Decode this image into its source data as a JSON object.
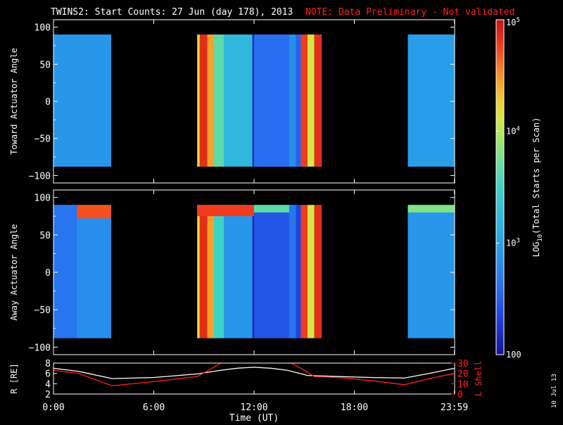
{
  "title": "TWINS2: Start Counts: 27 Jun (day 178), 2013",
  "note": "NOTE: Data Preliminary - Not validated",
  "side_stamp": "10 Jul 13",
  "colors": {
    "background": "#000000",
    "axes": "#ffffff",
    "note": "#ff2020",
    "l_shell": "#ff2020",
    "r_line": "#ffffff"
  },
  "chart_data": [
    {
      "type": "heatmap",
      "name": "toward",
      "ylabel": "Toward Actuator Angle",
      "ylim": [
        -110,
        110
      ],
      "yticks": [
        100,
        50,
        0,
        -50,
        -100
      ],
      "data_ylim": [
        -88,
        90
      ],
      "xlim_hours": [
        0,
        24
      ],
      "data_segments_hours": [
        [
          0,
          3.45
        ],
        [
          8.6,
          16.05
        ],
        [
          21.2,
          23.99
        ]
      ],
      "background_level": 0.22,
      "bands": [
        {
          "x": [
            0.0,
            3.45
          ],
          "level": 0.3
        },
        {
          "x": [
            8.6,
            8.75
          ],
          "level": 0.74
        },
        {
          "x": [
            8.75,
            9.2
          ],
          "level": 0.95
        },
        {
          "x": [
            9.2,
            9.6
          ],
          "level": 0.82
        },
        {
          "x": [
            9.6,
            10.2
          ],
          "level": 0.55
        },
        {
          "x": [
            10.2,
            11.9
          ],
          "level": 0.4
        },
        {
          "x": [
            11.9,
            12.0
          ],
          "level": 0.05
        },
        {
          "x": [
            12.0,
            14.1
          ],
          "level": 0.2
        },
        {
          "x": [
            14.1,
            14.5
          ],
          "level": 0.28
        },
        {
          "x": [
            14.5,
            14.8
          ],
          "level": 0.18
        },
        {
          "x": [
            14.8,
            15.2
          ],
          "level": 0.92
        },
        {
          "x": [
            15.2,
            15.6
          ],
          "level": 0.7
        },
        {
          "x": [
            15.6,
            16.05
          ],
          "level": 0.95
        },
        {
          "x": [
            21.2,
            23.99
          ],
          "level": 0.32
        }
      ]
    },
    {
      "type": "heatmap",
      "name": "away",
      "ylabel": "Away Actuator Angle",
      "ylim": [
        -110,
        110
      ],
      "yticks": [
        100,
        50,
        0,
        -50,
        -100
      ],
      "data_ylim": [
        -88,
        90
      ],
      "xlim_hours": [
        0,
        24
      ],
      "data_segments_hours": [
        [
          0,
          3.45
        ],
        [
          8.6,
          16.05
        ],
        [
          21.2,
          23.99
        ]
      ],
      "background_level": 0.22,
      "bands": [
        {
          "x": [
            0.0,
            1.4
          ],
          "level": 0.22
        },
        {
          "x": [
            1.4,
            3.45
          ],
          "level": 0.28
        },
        {
          "x": [
            8.6,
            8.75
          ],
          "level": 0.74
        },
        {
          "x": [
            8.75,
            9.2
          ],
          "level": 0.95
        },
        {
          "x": [
            9.2,
            9.6
          ],
          "level": 0.82
        },
        {
          "x": [
            9.6,
            10.2
          ],
          "level": 0.5
        },
        {
          "x": [
            10.2,
            11.9
          ],
          "level": 0.3
        },
        {
          "x": [
            11.9,
            12.0
          ],
          "level": 0.05
        },
        {
          "x": [
            12.0,
            14.1
          ],
          "level": 0.15
        },
        {
          "x": [
            14.1,
            14.5
          ],
          "level": 0.22
        },
        {
          "x": [
            14.5,
            14.8
          ],
          "level": 0.12
        },
        {
          "x": [
            14.8,
            15.2
          ],
          "level": 0.92
        },
        {
          "x": [
            15.2,
            15.6
          ],
          "level": 0.7
        },
        {
          "x": [
            15.6,
            16.05
          ],
          "level": 0.95
        },
        {
          "x": [
            21.2,
            23.99
          ],
          "level": 0.3
        }
      ],
      "top_hot_strips": [
        {
          "x": [
            1.4,
            3.45
          ],
          "y": [
            72,
            90
          ],
          "level": 0.9
        },
        {
          "x": [
            8.6,
            12.0
          ],
          "y": [
            75,
            90
          ],
          "level": 0.92
        },
        {
          "x": [
            12.0,
            14.1
          ],
          "y": [
            80,
            90
          ],
          "level": 0.55
        },
        {
          "x": [
            21.2,
            23.99
          ],
          "y": [
            80,
            90
          ],
          "level": 0.6
        }
      ]
    },
    {
      "type": "line",
      "name": "orbit",
      "ylabel": "R [RE]",
      "y2label": "L Shell",
      "ylim": [
        2,
        8
      ],
      "yticks": [
        2,
        4,
        6,
        8
      ],
      "y2lim": [
        0,
        30
      ],
      "y2ticks": [
        0,
        10,
        20,
        30
      ],
      "xlabel": "Time (UT)",
      "xlim_hours": [
        0,
        24
      ],
      "xtick_hours": [
        0,
        6,
        12,
        18,
        23.983
      ],
      "xtick_labels": [
        "0:00",
        "6:00",
        "12:00",
        "18:00",
        "23:59"
      ],
      "series": [
        {
          "axis": "left",
          "color": "#ffffff",
          "x": [
            0,
            1.5,
            3.5,
            6,
            8.6,
            10,
            11,
            12,
            13,
            14,
            15.2,
            17,
            19,
            21,
            22.5,
            24
          ],
          "y": [
            7.0,
            6.4,
            5.0,
            5.2,
            5.9,
            6.6,
            7.0,
            7.2,
            7.0,
            6.6,
            5.6,
            5.4,
            5.2,
            5.1,
            6.0,
            7.0
          ]
        },
        {
          "axis": "right",
          "color": "#ff2020",
          "x": [
            0,
            1.5,
            3.5,
            6,
            8.6,
            9.5,
            10.2
          ],
          "y": [
            23,
            20,
            8,
            12,
            17,
            25,
            32
          ]
        },
        {
          "axis": "right",
          "color": "#ff2020",
          "x": [
            14.0,
            14.8,
            15.6,
            17,
            19,
            21,
            22.5,
            24
          ],
          "y": [
            32,
            25,
            17,
            16,
            13,
            9,
            15,
            20
          ]
        }
      ]
    }
  ],
  "colorbar": {
    "label": "LOG10(Total Starts per Scan)",
    "label_main": "LOG",
    "label_sub": "10",
    "label_rest": "(Total Starts per Scan)",
    "ticks": [
      "10^5",
      "10^4",
      "10^3",
      "100"
    ],
    "tick_base": [
      "10",
      "10",
      "10",
      "100"
    ],
    "tick_exp": [
      "5",
      "4",
      "3",
      ""
    ],
    "tick_levels": [
      1.0,
      0.667,
      0.333,
      0.0
    ]
  }
}
